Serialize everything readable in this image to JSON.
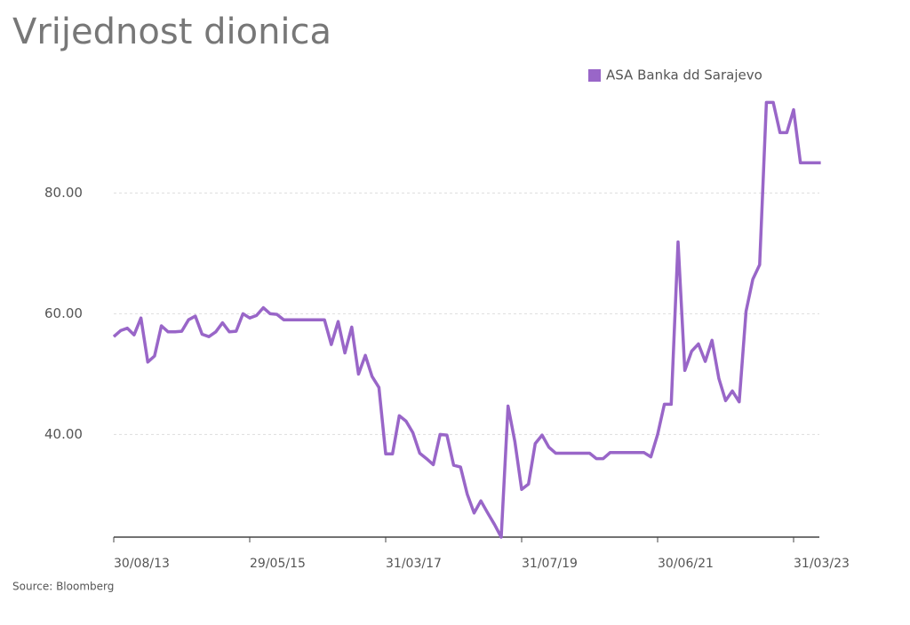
{
  "chart_data": {
    "type": "line",
    "title": "Vrijednost dionica",
    "source": "Source: Bloomberg",
    "legend": "top-right",
    "grid": true,
    "ylim": [
      23,
      96
    ],
    "yticks": [
      {
        "value": 40,
        "label": "40.00"
      },
      {
        "value": 60,
        "label": "60.00"
      },
      {
        "value": 80,
        "label": "80.00"
      }
    ],
    "categories": [
      "30/08/13",
      null,
      null,
      null,
      null,
      null,
      null,
      null,
      null,
      null,
      null,
      null,
      null,
      null,
      null,
      null,
      null,
      null,
      null,
      null,
      "29/05/15",
      null,
      null,
      null,
      null,
      null,
      null,
      null,
      null,
      null,
      null,
      null,
      null,
      null,
      null,
      null,
      null,
      null,
      null,
      null,
      "31/03/17",
      null,
      null,
      null,
      null,
      null,
      null,
      null,
      null,
      null,
      null,
      null,
      null,
      null,
      null,
      null,
      null,
      null,
      null,
      null,
      "31/07/19",
      null,
      null,
      null,
      null,
      null,
      null,
      null,
      null,
      null,
      null,
      null,
      null,
      null,
      null,
      null,
      null,
      null,
      null,
      null,
      "30/06/21",
      null,
      null,
      null,
      null,
      null,
      null,
      null,
      null,
      null,
      null,
      null,
      null,
      null,
      null,
      null,
      null,
      null,
      null,
      null,
      "31/03/23",
      null,
      null,
      null,
      null
    ],
    "series": [
      {
        "name": "ASA Banka dd Sarajevo",
        "color": "#9966c8",
        "values": [
          56.2,
          57.2,
          57.6,
          56.5,
          59.3,
          52,
          53,
          58,
          57,
          57,
          57.1,
          59,
          59.6,
          56.6,
          56.2,
          57,
          58.5,
          57,
          57.1,
          60,
          59.3,
          59.7,
          61,
          60,
          59.9,
          59,
          59,
          59,
          59,
          59,
          59,
          59,
          54.9,
          58.7,
          53.5,
          57.8,
          50,
          53.1,
          49.6,
          47.8,
          36.8,
          36.8,
          43.1,
          42.2,
          40.3,
          36.9,
          36,
          35,
          40,
          39.9,
          34.9,
          34.6,
          30.1,
          27,
          29,
          27,
          25.1,
          23,
          44.7,
          38.8,
          30.9,
          31.8,
          38.5,
          39.9,
          37.9,
          36.9,
          36.9,
          36.9,
          36.9,
          36.9,
          36.9,
          36,
          36,
          37,
          37,
          37,
          37,
          37,
          37,
          36.3,
          40,
          45,
          45,
          71.9,
          50.6,
          53.8,
          55,
          52.1,
          55.6,
          49.3,
          45.6,
          47.2,
          45.4,
          60.4,
          65.7,
          68.1,
          95,
          95,
          90,
          90,
          93.8,
          85,
          85,
          85,
          85
        ]
      }
    ]
  }
}
